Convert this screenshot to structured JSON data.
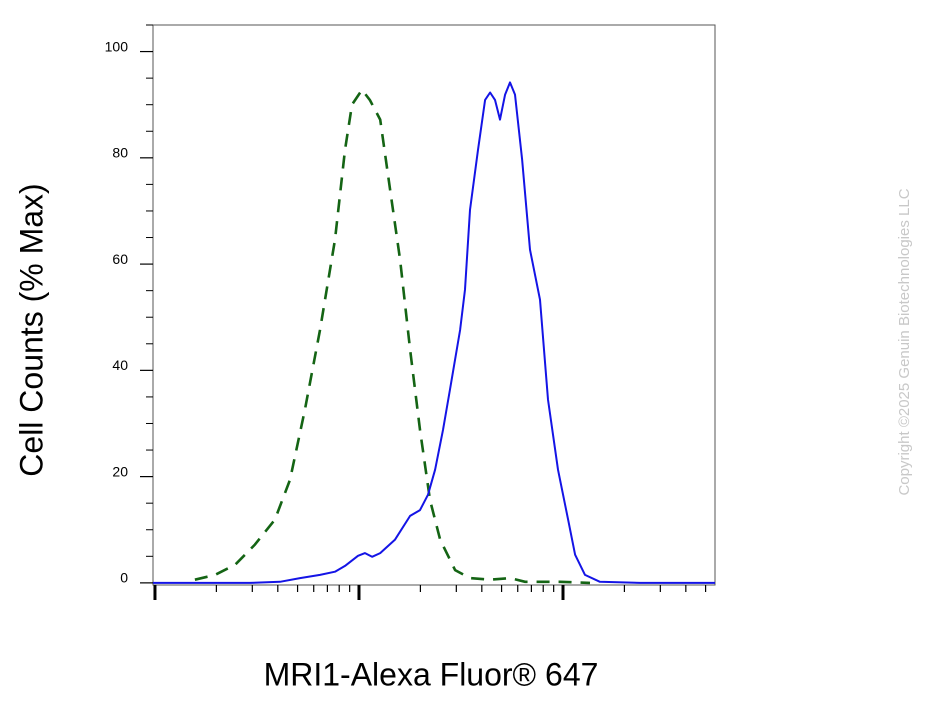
{
  "chart_data": {
    "type": "line",
    "ylabel": "Cell Counts (% Max)",
    "xlabel": "MRI1-Alexa Fluor® 647",
    "watermark": "Copyright ©2025 Genuin Biotechnologies LLC",
    "xscale": "log",
    "xlim": [
      9.78,
      5560
    ],
    "xticks": [
      10,
      100,
      1000
    ],
    "xtick_labels": false,
    "ylim": [
      -0.4,
      105
    ],
    "yticks": [
      0,
      20,
      40,
      60,
      80,
      100
    ],
    "grid": false,
    "series": [
      {
        "color": "#146414",
        "style": "dashed",
        "x": [
          15.7,
          19.7,
          24.7,
          30.9,
          38.7,
          45.9,
          54.3,
          64.4,
          76.3,
          85.4,
          92.4,
          103.5,
          113,
          127,
          142,
          159,
          178,
          199,
          223,
          250,
          296,
          350,
          439,
          550,
          652,
          967,
          1356
        ],
        "values": [
          0.6,
          1.5,
          3.4,
          7.2,
          11.9,
          19.4,
          32.6,
          47.6,
          64.6,
          81.5,
          90.0,
          92.8,
          90.9,
          87.2,
          74.0,
          60.8,
          43.9,
          28.8,
          15.6,
          8.1,
          2.4,
          0.9,
          0.6,
          0.9,
          0.2,
          0.2,
          0
        ]
      },
      {
        "color": "#1414e6",
        "style": "solid",
        "x": [
          9.78,
          16.6,
          29.2,
          41.0,
          51.4,
          64.4,
          76.3,
          85.4,
          98.9,
          107,
          116,
          127,
          150,
          178,
          199,
          218,
          236,
          258,
          279,
          313,
          331,
          350,
          383,
          415,
          439,
          464,
          491,
          520,
          550,
          582,
          630,
          689,
          771,
          844,
          945,
          1059,
          1146,
          1282,
          1517,
          2384,
          5560
        ],
        "values": [
          0,
          0,
          0,
          0.2,
          0.9,
          1.5,
          2.1,
          3.2,
          5.1,
          5.6,
          4.9,
          5.6,
          8.1,
          12.6,
          13.7,
          16.6,
          21.3,
          28.8,
          36.3,
          47.6,
          55.2,
          70.2,
          81.5,
          90.9,
          92.3,
          90.9,
          87.2,
          91.9,
          94.2,
          91.9,
          79.7,
          62.7,
          53.3,
          34.5,
          21.3,
          11.9,
          5.3,
          1.5,
          0.2,
          0,
          0
        ]
      }
    ]
  }
}
